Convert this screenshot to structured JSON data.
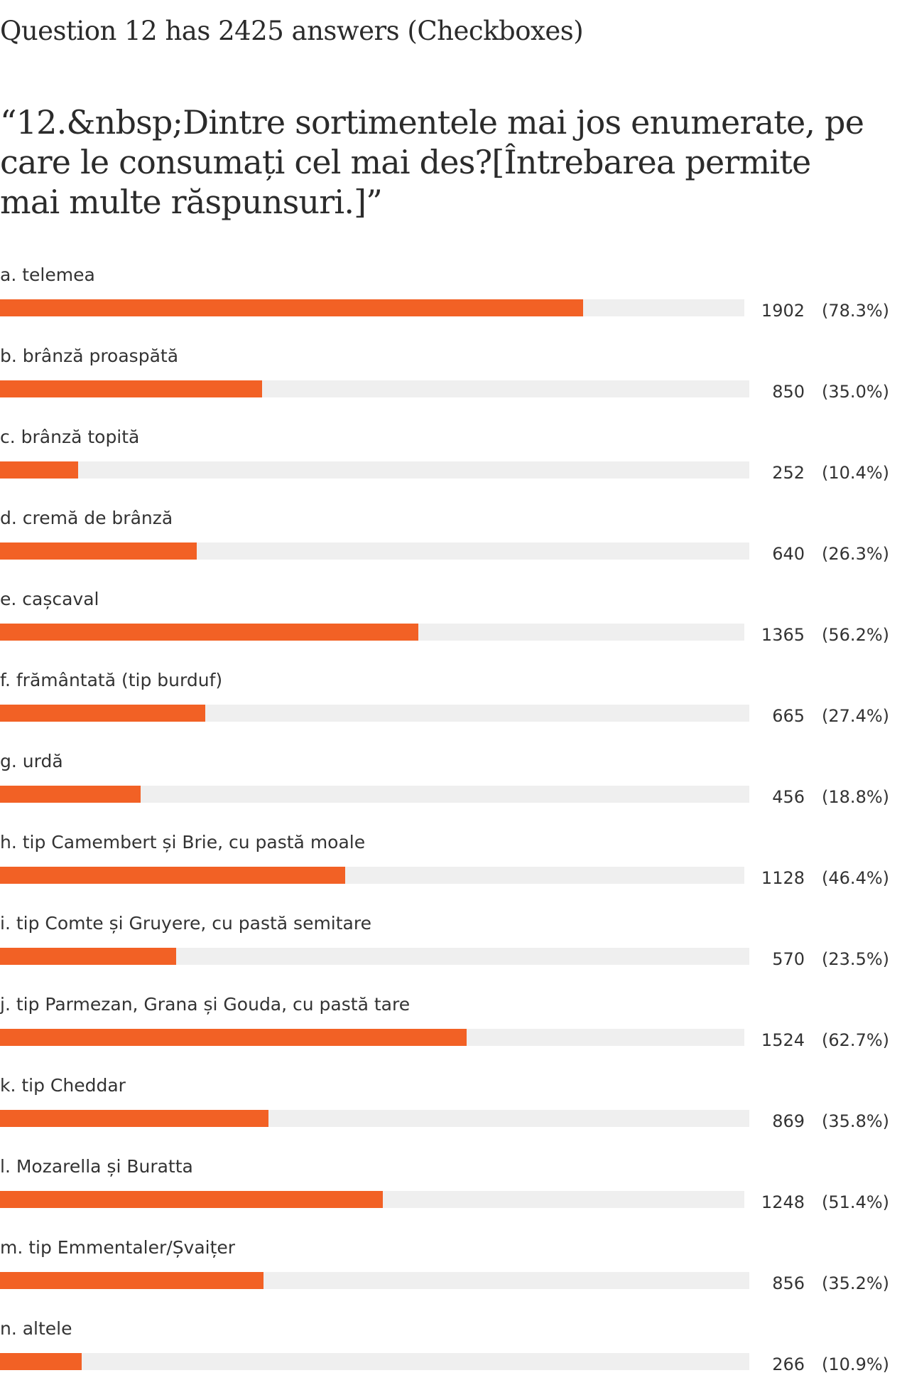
{
  "header": {
    "summary": "Question 12 has 2425 answers (Checkboxes)",
    "question": "“12.&nbsp;Dintre sortimentele mai jos enumerate, pe care le consumați cel mai des?[Întrebarea permite mai multe răspunsuri.]”"
  },
  "colors": {
    "bar": "#f26125",
    "track": "#efefef"
  },
  "chart_data": {
    "type": "bar",
    "orientation": "horizontal",
    "total_answers": 2425,
    "categories": [
      "a. telemea",
      "b. brânză proaspătă",
      "c. brânză topită",
      "d. cremă de brânză",
      "e. cașcaval",
      "f. frământată (tip burduf)",
      "g. urdă",
      "h. tip Camembert și Brie, cu pastă moale",
      "i. tip Comte și Gruyere, cu pastă semitare",
      "j. tip Parmezan, Grana și Gouda, cu pastă tare",
      "k. tip Cheddar",
      "l. Mozarella și Buratta",
      "m. tip Emmentaler/Șvaițer",
      "n. altele"
    ],
    "values": [
      1902,
      850,
      252,
      640,
      1365,
      665,
      456,
      1128,
      570,
      1524,
      869,
      1248,
      856,
      266
    ],
    "percents": [
      "(78.3%)",
      "(35.0%)",
      "(10.4%)",
      "(26.3%)",
      "(56.2%)",
      "(27.4%)",
      "(18.8%)",
      "(46.4%)",
      "(23.5%)",
      "(62.7%)",
      "(35.8%)",
      "(51.4%)",
      "(35.2%)",
      "(10.9%)"
    ],
    "percent_values": [
      78.3,
      35.0,
      10.4,
      26.3,
      56.2,
      27.4,
      18.8,
      46.4,
      23.5,
      62.7,
      35.8,
      51.4,
      35.2,
      10.9
    ],
    "xlim": [
      0,
      100
    ]
  }
}
